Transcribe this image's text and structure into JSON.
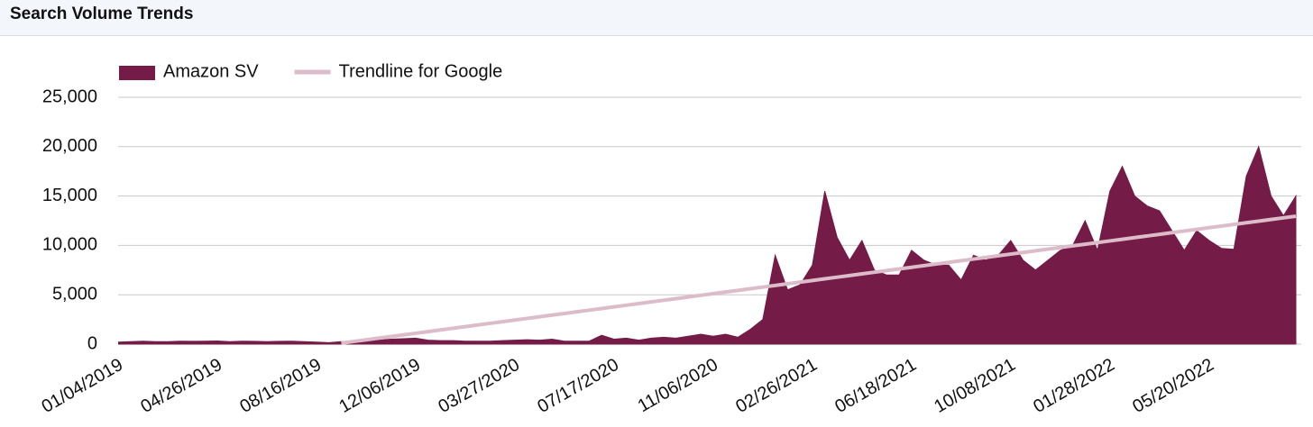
{
  "header": {
    "title": "Search Volume Trends"
  },
  "chart_data": {
    "type": "area",
    "categories": [
      "01/04/2019",
      null,
      null,
      null,
      null,
      null,
      null,
      null,
      "04/26/2019",
      null,
      null,
      null,
      null,
      null,
      null,
      null,
      "08/16/2019",
      null,
      null,
      null,
      null,
      null,
      null,
      null,
      "12/06/2019",
      null,
      null,
      null,
      null,
      null,
      null,
      null,
      "03/27/2020",
      null,
      null,
      null,
      null,
      null,
      null,
      null,
      "07/17/2020",
      null,
      null,
      null,
      null,
      null,
      null,
      null,
      "11/06/2020",
      null,
      null,
      null,
      null,
      null,
      null,
      null,
      "02/26/2021",
      null,
      null,
      null,
      null,
      null,
      null,
      null,
      "06/18/2021",
      null,
      null,
      null,
      null,
      null,
      null,
      null,
      "10/08/2021",
      null,
      null,
      null,
      null,
      null,
      null,
      null,
      "01/28/2022",
      null,
      null,
      null,
      null,
      null,
      null,
      null,
      "05/20/2022",
      null,
      null,
      null,
      null,
      null,
      null,
      null
    ],
    "series": [
      {
        "name": "Amazon SV",
        "type": "area",
        "color": "#741b47",
        "values": [
          200,
          250,
          300,
          250,
          250,
          300,
          280,
          300,
          320,
          250,
          300,
          280,
          250,
          280,
          300,
          250,
          200,
          150,
          250,
          300,
          350,
          400,
          500,
          550,
          600,
          400,
          350,
          350,
          300,
          300,
          300,
          350,
          400,
          450,
          400,
          500,
          300,
          300,
          300,
          900,
          500,
          600,
          400,
          600,
          700,
          600,
          800,
          1000,
          800,
          1000,
          700,
          1500,
          2500,
          9000,
          5500,
          6000,
          8000,
          15500,
          10800,
          8500,
          10500,
          7500,
          7000,
          7000,
          9500,
          8500,
          8000,
          8000,
          6500,
          9000,
          8500,
          9000,
          10500,
          8500,
          7500,
          8500,
          9500,
          10000,
          12500,
          9500,
          15500,
          18000,
          15000,
          14000,
          13500,
          11500,
          9500,
          11500,
          10500,
          9700,
          9600,
          17000,
          20000,
          15000,
          13000,
          15000
        ]
      },
      {
        "name": "Trendline for Google",
        "type": "line",
        "color": "#dcbcc8",
        "values": [
          null,
          null,
          null,
          null,
          null,
          null,
          null,
          null,
          null,
          null,
          null,
          null,
          null,
          null,
          null,
          null,
          null,
          null,
          100,
          267,
          434,
          601,
          768,
          935,
          1102,
          1269,
          1436,
          1603,
          1770,
          1937,
          2104,
          2271,
          2438,
          2605,
          2772,
          2939,
          3106,
          3273,
          3440,
          3607,
          3774,
          3941,
          4108,
          4275,
          4442,
          4609,
          4776,
          4943,
          5110,
          5277,
          5444,
          5611,
          5778,
          5945,
          6112,
          6279,
          6446,
          6613,
          6780,
          6947,
          7114,
          7281,
          7448,
          7615,
          7782,
          7949,
          8116,
          8283,
          8450,
          8617,
          8784,
          8951,
          9118,
          9285,
          9452,
          9619,
          9786,
          9953,
          10120,
          10287,
          10454,
          10621,
          10788,
          10955,
          11122,
          11289,
          11456,
          11623,
          11790,
          11957,
          12124,
          12291,
          12458,
          12625,
          12792,
          12959
        ]
      }
    ],
    "ylim": [
      0,
      25000
    ],
    "yticks": [
      {
        "value": 0,
        "label": "0"
      },
      {
        "value": 5000,
        "label": "5,000"
      },
      {
        "value": 10000,
        "label": "10,000"
      },
      {
        "value": 15000,
        "label": "15,000"
      },
      {
        "value": 20000,
        "label": "20,000"
      },
      {
        "value": 25000,
        "label": "25,000"
      }
    ],
    "grid": true,
    "legend": "top"
  }
}
